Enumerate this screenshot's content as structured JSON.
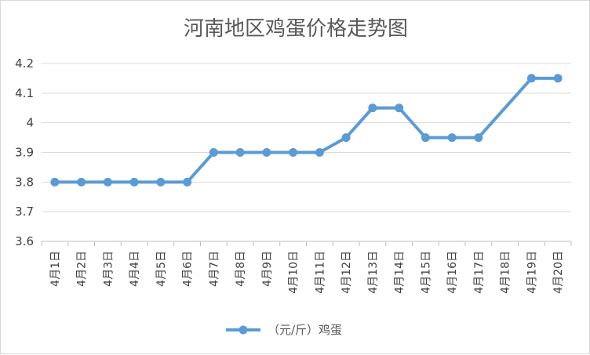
{
  "chart_data": {
    "type": "line",
    "title": "河南地区鸡蛋价格走势图",
    "categories": [
      "4月1日",
      "4月2日",
      "4月3日",
      "4月4日",
      "4月5日",
      "4月6日",
      "4月7日",
      "4月8日",
      "4月9日",
      "4月10日",
      "4月11日",
      "4月12日",
      "4月13日",
      "4月14日",
      "4月15日",
      "4月16日",
      "4月17日",
      "4月18日",
      "4月19日",
      "4月20日"
    ],
    "series": [
      {
        "name": "（元/斤）鸡蛋",
        "values": [
          3.8,
          3.8,
          3.8,
          3.8,
          3.8,
          3.8,
          3.9,
          3.9,
          3.9,
          3.9,
          3.9,
          3.95,
          4.05,
          4.05,
          3.95,
          3.95,
          3.95,
          null,
          4.15,
          4.15
        ],
        "color": "#5b9bd5"
      }
    ],
    "ylim": [
      3.6,
      4.2
    ],
    "yticks": [
      "3.6",
      "3.7",
      "3.8",
      "3.9",
      "4",
      "4.1",
      "4.2"
    ],
    "ytick_values": [
      3.6,
      3.7,
      3.8,
      3.9,
      4.0,
      4.1,
      4.2
    ],
    "grid": true,
    "legend_position": "bottom"
  }
}
